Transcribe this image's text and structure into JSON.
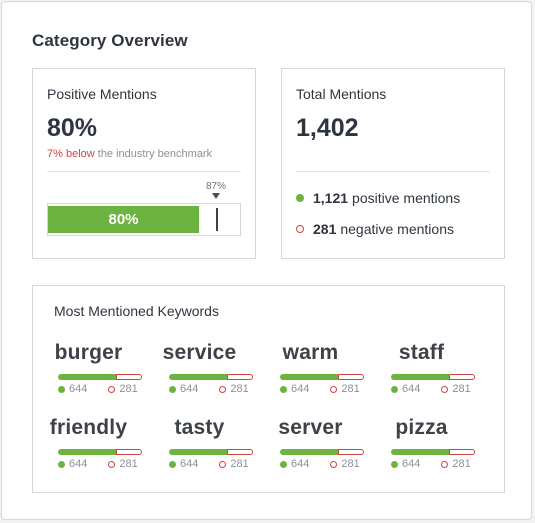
{
  "header": {
    "title": "Category Overview"
  },
  "positive": {
    "label": "Positive Mentions",
    "value": "80%",
    "bench_highlight": "7% below",
    "bench_rest": " the industry benchmark",
    "bar_label": "80%",
    "bar_fraction": 0.8,
    "benchmark_label": "87%",
    "benchmark_fraction": 0.87
  },
  "total": {
    "label": "Total Mentions",
    "value": "1,402",
    "positive_count": "1,121",
    "positive_text": "positive mentions",
    "negative_count": "281",
    "negative_text": "negative mentions"
  },
  "keywords": {
    "label": "Most Mentioned Keywords",
    "items": [
      {
        "word": "burger",
        "pos": "644",
        "neg": "281"
      },
      {
        "word": "service",
        "pos": "644",
        "neg": "281"
      },
      {
        "word": "warm",
        "pos": "644",
        "neg": "281"
      },
      {
        "word": "staff",
        "pos": "644",
        "neg": "281"
      },
      {
        "word": "friendly",
        "pos": "644",
        "neg": "281"
      },
      {
        "word": "tasty",
        "pos": "644",
        "neg": "281"
      },
      {
        "word": "server",
        "pos": "644",
        "neg": "281"
      },
      {
        "word": "pizza",
        "pos": "644",
        "neg": "281"
      }
    ]
  },
  "colors": {
    "positive": "#6cb33f",
    "negative": "#d0443b",
    "text": "#2f3540",
    "muted": "#8b9099"
  }
}
